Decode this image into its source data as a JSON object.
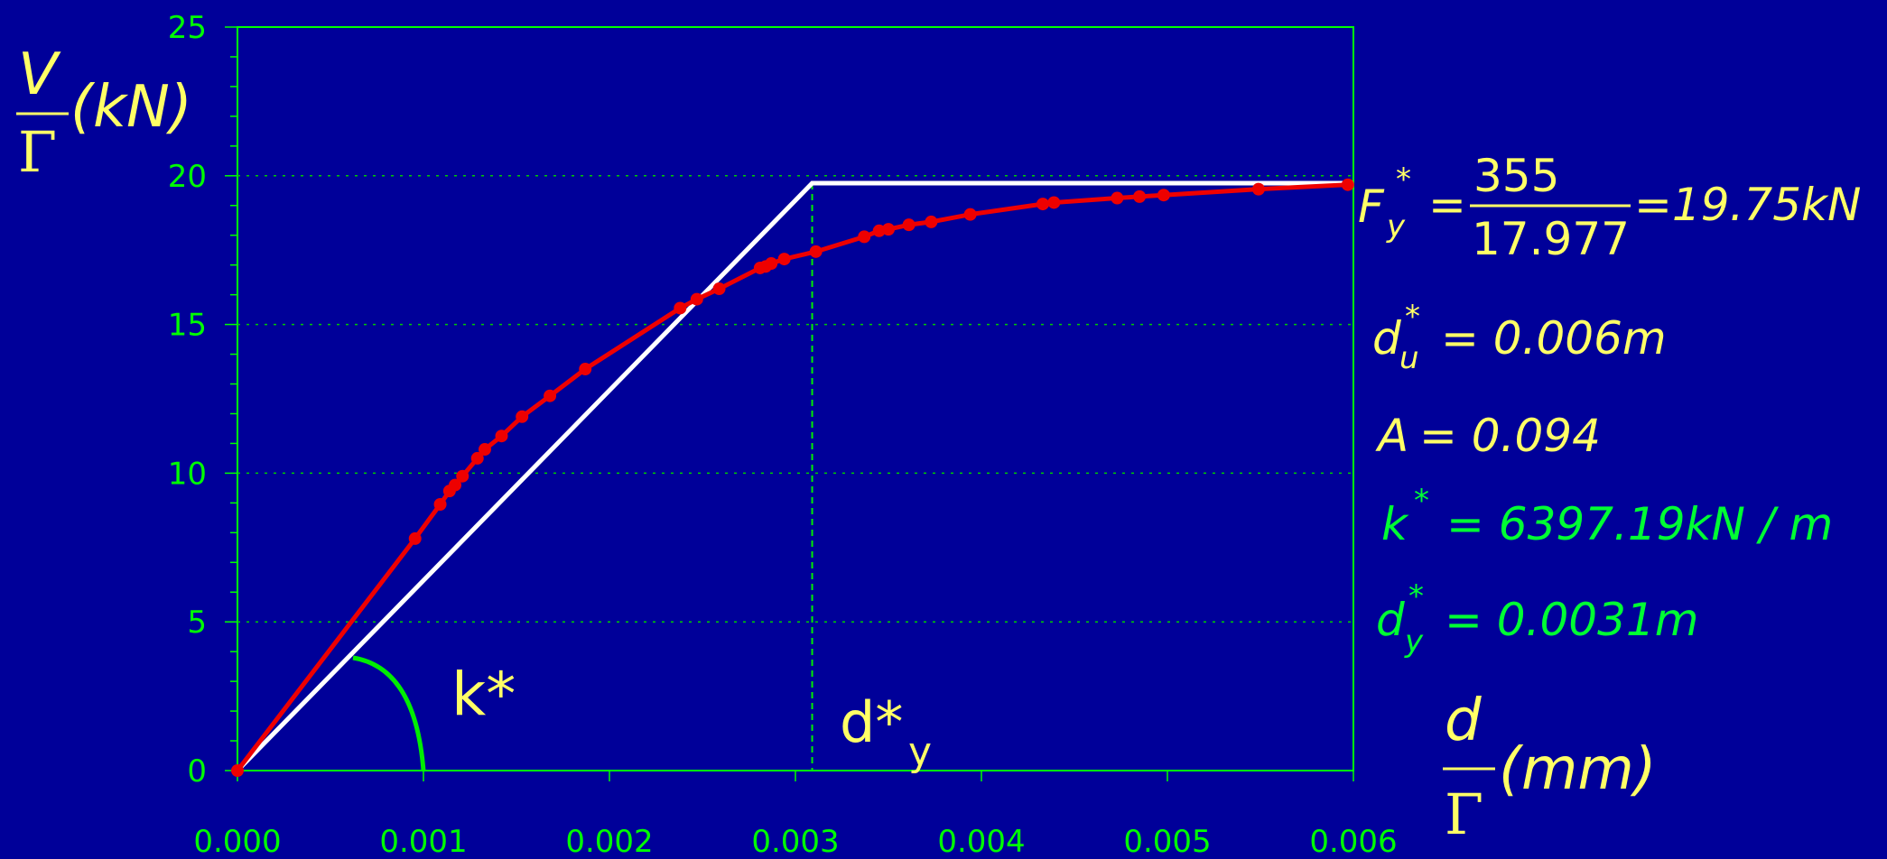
{
  "chart_data": {
    "type": "line",
    "title": "",
    "xlim": [
      0,
      0.006
    ],
    "ylim": [
      0,
      25
    ],
    "x_ticks": [
      "0.000",
      "0.001",
      "0.002",
      "0.003",
      "0.004",
      "0.005",
      "0.006"
    ],
    "y_ticks": [
      "0",
      "5",
      "10",
      "15",
      "20",
      "25"
    ],
    "x_tick_values": [
      0,
      0.001,
      0.002,
      0.003,
      0.004,
      0.005,
      0.006
    ],
    "y_tick_values": [
      0,
      5,
      10,
      15,
      20,
      25
    ],
    "grid": "horizontal dotted at 5, 10, 15, 20",
    "xlabel": {
      "numerator": "d",
      "denominator": "Γ",
      "unit": "(mm)"
    },
    "ylabel": {
      "numerator": "V",
      "denominator": "Γ",
      "unit": "(kN)"
    },
    "series": [
      {
        "color": "#ee0000",
        "markers": true,
        "points": [
          [
            0,
            0
          ],
          [
            0.000955,
            7.8
          ],
          [
            0.00109,
            8.95
          ],
          [
            0.00114,
            9.4
          ],
          [
            0.00117,
            9.6
          ],
          [
            0.00121,
            9.9
          ],
          [
            0.00129,
            10.5
          ],
          [
            0.00133,
            10.8
          ],
          [
            0.00142,
            11.25
          ],
          [
            0.00153,
            11.9
          ],
          [
            0.00168,
            12.6
          ],
          [
            0.00187,
            13.5
          ],
          [
            0.00238,
            15.55
          ],
          [
            0.00247,
            15.85
          ],
          [
            0.00259,
            16.2
          ],
          [
            0.00281,
            16.9
          ],
          [
            0.00284,
            16.95
          ],
          [
            0.00287,
            17.05
          ],
          [
            0.00294,
            17.2
          ],
          [
            0.00311,
            17.45
          ],
          [
            0.00337,
            17.95
          ],
          [
            0.00345,
            18.15
          ],
          [
            0.0035,
            18.2
          ],
          [
            0.00361,
            18.35
          ],
          [
            0.00373,
            18.45
          ],
          [
            0.00394,
            18.7
          ],
          [
            0.00433,
            19.05
          ],
          [
            0.00439,
            19.1
          ],
          [
            0.00473,
            19.25
          ],
          [
            0.00485,
            19.3
          ],
          [
            0.00498,
            19.35
          ],
          [
            0.00549,
            19.55
          ],
          [
            0.00597,
            19.7
          ]
        ]
      },
      {
        "color": "#ffffff",
        "markers": false,
        "points": [
          [
            0,
            0
          ],
          [
            0.00309,
            19.75
          ],
          [
            0.006,
            19.75
          ]
        ]
      }
    ],
    "vertical_marker": {
      "x": 0.00309,
      "y": 19.75,
      "style": "dashed"
    },
    "annotations": {
      "k_star": "k*",
      "d_star_y_main": "d*",
      "d_star_y_sub": "y"
    }
  },
  "equations": {
    "fy": {
      "symbol": "F",
      "sup": "*",
      "sub": "y",
      "numerator": "355",
      "denominator": "17.977",
      "result": "=19.75kN"
    },
    "du": {
      "symbol": "d",
      "sup": "*",
      "sub": "u",
      "value": "= 0.006m"
    },
    "A": {
      "symbol": "A",
      "value": "= 0.094"
    },
    "k": {
      "symbol": "k",
      "sup": "*",
      "value": "= 6397.19kN / m"
    },
    "dy": {
      "symbol": "d",
      "sup": "*",
      "sub": "y",
      "value": "= 0.0031m"
    }
  },
  "colors": {
    "background": "#000099",
    "axes": "#00ff00",
    "curve": "#ee0000",
    "bilinear": "#ffffff",
    "text_yellow": "#ffff66",
    "text_green": "#00ff33"
  }
}
